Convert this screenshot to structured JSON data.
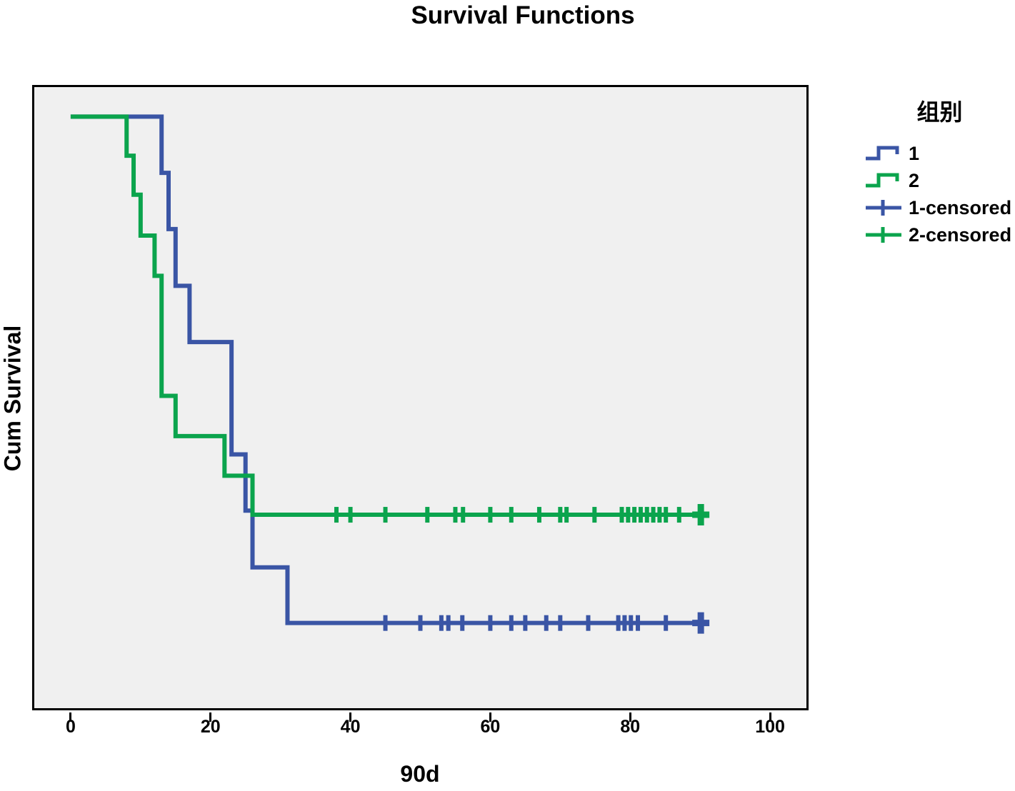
{
  "title": "Survival Functions",
  "axes": {
    "xlabel": "90d",
    "ylabel": "Cum Survival",
    "x_ticks": [
      0,
      20,
      40,
      60,
      80,
      100
    ],
    "y_ticks": []
  },
  "legend": {
    "title": "组别",
    "entries": [
      {
        "label": "1",
        "symbol": "step-line",
        "series_index": 0
      },
      {
        "label": "2",
        "symbol": "step-line",
        "series_index": 1
      },
      {
        "label": "1-censored",
        "symbol": "censor-plus",
        "series_index": 0
      },
      {
        "label": "2-censored",
        "symbol": "censor-plus",
        "series_index": 1
      }
    ]
  },
  "colors": {
    "group1": "#3A55A5",
    "group2": "#0BA44D",
    "plot_background": "#F0F0F0",
    "plot_border": "#000000",
    "text": "#000000"
  },
  "chart_data": {
    "type": "line",
    "subtype": "kaplan-meier-step",
    "title": "Survival Functions",
    "xlabel": "90d",
    "ylabel": "Cum Survival",
    "xlim": [
      -5.2,
      105.2
    ],
    "ylim": [
      0,
      1.05
    ],
    "x_ticks": [
      0,
      20,
      40,
      60,
      80,
      100
    ],
    "grid": false,
    "legend_position": "right-outside",
    "series": [
      {
        "name": "1",
        "color": "#3A55A5",
        "steps": [
          [
            0,
            1.0
          ],
          [
            13,
            0.905
          ],
          [
            14,
            0.81
          ],
          [
            15,
            0.714
          ],
          [
            17,
            0.619
          ],
          [
            23,
            0.429
          ],
          [
            25,
            0.334
          ],
          [
            26,
            0.238
          ],
          [
            31,
            0.144
          ]
        ],
        "end_x": 91,
        "censored_x": [
          45,
          50,
          53,
          54,
          56,
          60,
          63,
          65,
          68,
          70,
          74,
          78.3,
          79.2,
          80.1,
          81.1,
          85.1,
          90.1
        ],
        "censored_y": 0.144
      },
      {
        "name": "2",
        "color": "#0BA44D",
        "steps": [
          [
            0,
            1.0
          ],
          [
            8,
            0.934
          ],
          [
            9,
            0.868
          ],
          [
            10,
            0.799
          ],
          [
            12,
            0.731
          ],
          [
            13,
            0.528
          ],
          [
            15,
            0.46
          ],
          [
            22,
            0.393
          ],
          [
            26,
            0.327
          ]
        ],
        "end_x": 91,
        "censored_x": [
          38,
          40,
          45,
          51,
          55,
          56.1,
          60,
          63,
          67,
          70,
          70.9,
          74.9,
          78.8,
          79.7,
          80.6,
          81.5,
          82.4,
          83.3,
          84.2,
          85.1,
          87,
          90.1
        ],
        "censored_y": 0.327
      }
    ]
  }
}
